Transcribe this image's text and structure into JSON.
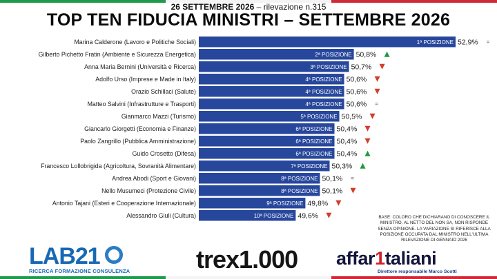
{
  "header": {
    "date": "26 SETTEMBRE 2026",
    "survey": "rilevazione n.315",
    "title": "TOP TEN FIDUCIA MINISTRI – SETTEMBRE 2026"
  },
  "colors": {
    "bar": "#27479c",
    "up": "#1f9a3c",
    "down": "#d43c2c",
    "same": "#8a8a8a",
    "flag_green": "#1e9a4a",
    "flag_red": "#cf2b36"
  },
  "chart_data": {
    "type": "bar",
    "orientation": "horizontal",
    "title": "TOP TEN FIDUCIA MINISTRI – SETTEMBRE 2026",
    "xlim": [
      0,
      52.9
    ],
    "categories": [
      "Marina Calderone (Lavoro e Politiche Sociali)",
      "Gilberto Pichetto Fratin (Ambiente e Sicurezza Energetica)",
      "Anna Maria Bernini (Università e Ricerca)",
      "Adolfo Urso (Imprese e Made in Italy)",
      "Orazio Schillaci (Salute)",
      "Matteo Salvini (Infrastrutture e Trasporti)",
      "Gianmarco Mazzi (Turismo)",
      "Giancarlo Giorgetti (Economia e Finanze)",
      "Paolo Zangrillo (Pubblica Amministrazione)",
      "Guido Crosetto (Difesa)",
      "Francesco Lollobrigida (Agricoltura, Sovranità Alimentare)",
      "Andrea Abodi (Sport e Giovani)",
      "Nello Musumeci (Protezione Civile)",
      "Antonio Tajani (Esteri e Cooperazione Internazionale)",
      "Alessandro Giuli (Cultura)"
    ],
    "values": [
      52.9,
      50.8,
      50.7,
      50.6,
      50.6,
      50.6,
      50.5,
      50.4,
      50.4,
      50.4,
      50.3,
      50.1,
      50.1,
      49.8,
      49.6
    ],
    "value_labels": [
      "52,9%",
      "50,8%",
      "50,7%",
      "50,6%",
      "50,6%",
      "50,6%",
      "50,5%",
      "50,4%",
      "50,4%",
      "50,4%",
      "50,3%",
      "50,1%",
      "50,1%",
      "49,8%",
      "49,6%"
    ],
    "positions": [
      "1ª POSIZIONE",
      "2ª POSIZIONE",
      "3ª POSIZIONE",
      "4ª POSIZIONE",
      "4ª POSIZIONE",
      "4ª POSIZIONE",
      "5ª POSIZIONE",
      "6ª POSIZIONE",
      "6ª POSIZIONE",
      "6ª POSIZIONE",
      "7ª POSIZIONE",
      "8ª POSIZIONE",
      "8ª POSIZIONE",
      "9ª POSIZIONE",
      "10ª POSIZIONE"
    ],
    "trend": [
      "same",
      "up",
      "down",
      "down",
      "down",
      "same",
      "down",
      "down",
      "down",
      "up",
      "up",
      "same",
      "down",
      "down",
      "down"
    ]
  },
  "footnote": "BASE: COLORO CHE DICHIARANO DI CONOSCERE IL MINISTRO, AL NETTO DEL NON SA, NON RISPONDE SENZA OPINIONE. LA VARIAZIONE SI RIFERISCE ALLA POSIZIONE OCCUPATA DAL MINISTRO NELL'ULTIMA RILEVAZIONE DI GENNAIO 2026",
  "logos": {
    "lab21_name": "LAB21",
    "lab21_tagline": "RICERCA FORMAZIONE CONSULENZA",
    "trex_name": "trex1.000",
    "affari_name": "affaritaliani",
    "affari_tagline": "Direttore responsabile Marco Scotti"
  }
}
